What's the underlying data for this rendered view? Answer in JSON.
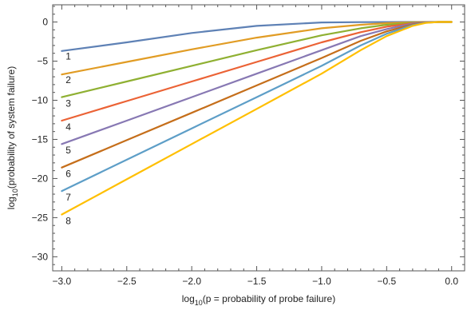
{
  "chart_data": {
    "type": "line",
    "xlabel": {
      "pre": "log",
      "sub": "10",
      "post": "(p = probability of probe failure)"
    },
    "ylabel": {
      "pre": "log",
      "sub": "10",
      "post": "(probability of system failure)"
    },
    "xlim": [
      -3.07,
      0.1
    ],
    "ylim": [
      -31.8,
      2.2
    ],
    "x_ticks": [
      -3.0,
      -2.5,
      -2.0,
      -1.5,
      -1.0,
      -0.5,
      0.0
    ],
    "x_tick_labels": [
      "−3.0",
      "−2.5",
      "−2.0",
      "−1.5",
      "−1.0",
      "−0.5",
      "0.0"
    ],
    "y_ticks": [
      0,
      -5,
      -10,
      -15,
      -20,
      -25,
      -30
    ],
    "y_tick_labels": [
      "0",
      "−5",
      "−10",
      "−15",
      "−20",
      "−25",
      "−30"
    ],
    "grid": false,
    "x": [
      -3.0,
      -2.5,
      -2.0,
      -1.5,
      -1.0,
      -0.7,
      -0.5,
      -0.3,
      -0.2,
      -0.1,
      0.0
    ],
    "series": [
      {
        "name": "1",
        "color": "#5e81b5",
        "values": [
          -3.7,
          -2.6,
          -1.4,
          -0.5,
          -0.06,
          -0.02,
          -0.01,
          0.0,
          0.0,
          0.0,
          0.0
        ]
      },
      {
        "name": "2",
        "color": "#e19c24",
        "values": [
          -6.7,
          -5.1,
          -3.5,
          -2.0,
          -0.8,
          -0.35,
          -0.15,
          -0.03,
          -0.01,
          0.0,
          0.0
        ]
      },
      {
        "name": "3",
        "color": "#8fb032",
        "values": [
          -9.6,
          -7.6,
          -5.6,
          -3.6,
          -1.7,
          -0.8,
          -0.35,
          -0.08,
          -0.02,
          0.0,
          0.0
        ]
      },
      {
        "name": "4",
        "color": "#eb6235",
        "values": [
          -12.6,
          -10.1,
          -7.6,
          -5.1,
          -2.6,
          -1.3,
          -0.6,
          -0.15,
          -0.04,
          0.0,
          0.0
        ]
      },
      {
        "name": "5",
        "color": "#8778b3",
        "values": [
          -15.6,
          -12.6,
          -9.6,
          -6.6,
          -3.6,
          -1.8,
          -0.9,
          -0.2,
          -0.05,
          0.0,
          0.0
        ]
      },
      {
        "name": "6",
        "color": "#c56e1a",
        "values": [
          -18.6,
          -15.1,
          -11.6,
          -8.1,
          -4.6,
          -2.4,
          -1.2,
          -0.3,
          -0.07,
          0.0,
          0.0
        ]
      },
      {
        "name": "7",
        "color": "#5d9ec7",
        "values": [
          -21.6,
          -17.6,
          -13.6,
          -9.6,
          -5.6,
          -3.0,
          -1.5,
          -0.4,
          -0.1,
          0.0,
          0.0
        ]
      },
      {
        "name": "8",
        "color": "#ffbf00",
        "values": [
          -24.6,
          -20.1,
          -15.6,
          -11.1,
          -6.6,
          -3.6,
          -1.8,
          -0.5,
          -0.12,
          0.0,
          0.0
        ]
      }
    ],
    "series_labels": [
      {
        "text": "1",
        "x": -2.95,
        "y": -4.4
      },
      {
        "text": "2",
        "x": -2.95,
        "y": -7.4
      },
      {
        "text": "3",
        "x": -2.95,
        "y": -10.4
      },
      {
        "text": "4",
        "x": -2.95,
        "y": -13.4
      },
      {
        "text": "5",
        "x": -2.95,
        "y": -16.4
      },
      {
        "text": "6",
        "x": -2.95,
        "y": -19.4
      },
      {
        "text": "7",
        "x": -2.95,
        "y": -22.4
      },
      {
        "text": "8",
        "x": -2.95,
        "y": -25.4
      }
    ]
  }
}
